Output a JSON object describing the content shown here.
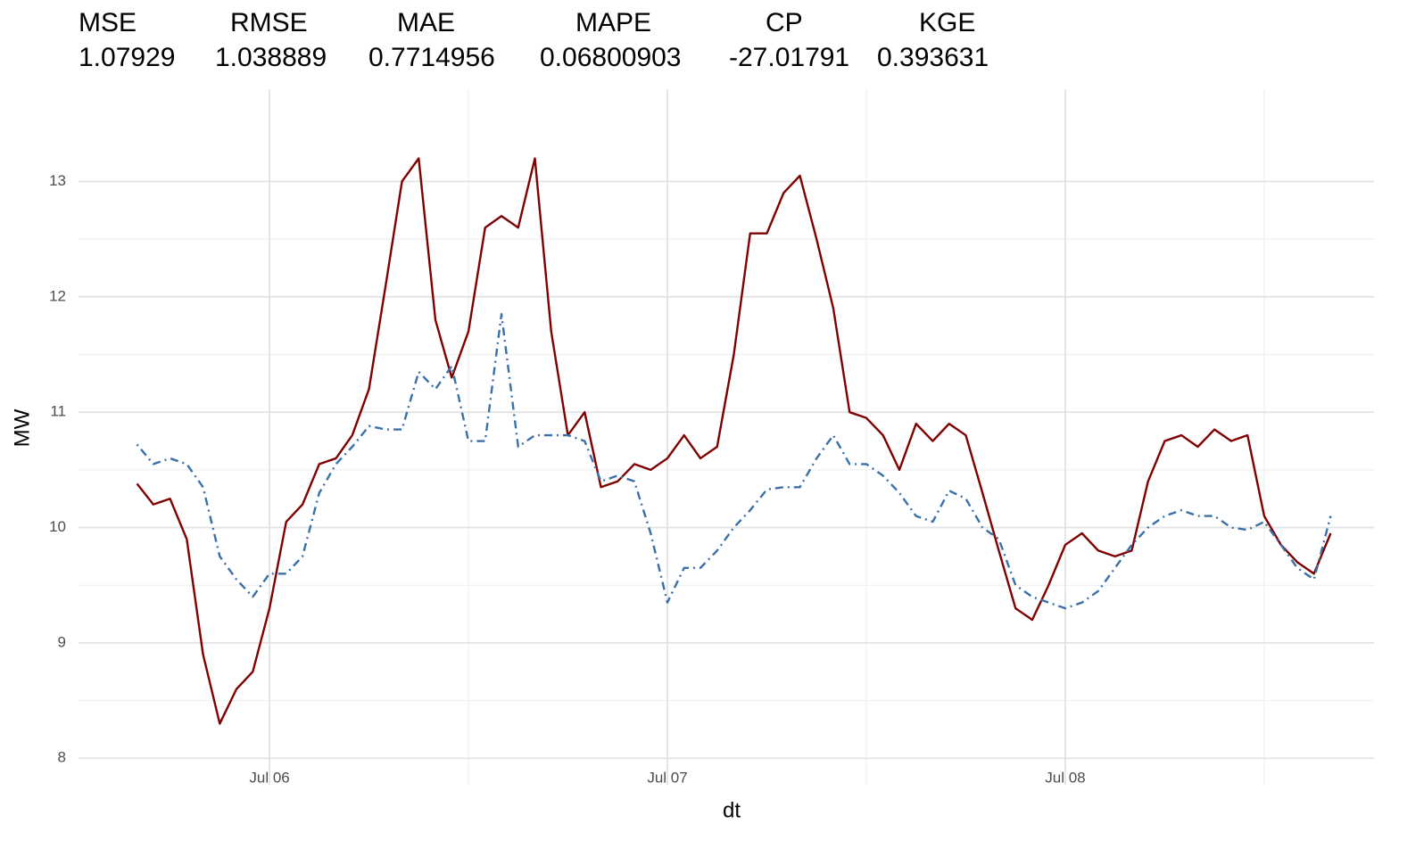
{
  "chart_data": {
    "type": "line",
    "metrics": {
      "names": [
        "MSE",
        "RMSE",
        "MAE",
        "MAPE",
        "CP",
        "KGE"
      ],
      "values": [
        "1.07929",
        "1.038889",
        "0.7714956",
        "0.06800903",
        "-27.01791",
        "0.393631"
      ]
    },
    "x_label": "dt",
    "y_label": "MW",
    "x": [
      -0.333,
      -0.292,
      -0.25,
      -0.208,
      -0.167,
      -0.125,
      -0.083,
      -0.042,
      0,
      0.042,
      0.083,
      0.125,
      0.167,
      0.208,
      0.25,
      0.292,
      0.333,
      0.375,
      0.417,
      0.458,
      0.5,
      0.542,
      0.583,
      0.625,
      0.667,
      0.708,
      0.75,
      0.792,
      0.833,
      0.875,
      0.917,
      0.958,
      1,
      1.042,
      1.083,
      1.125,
      1.167,
      1.208,
      1.25,
      1.292,
      1.333,
      1.375,
      1.417,
      1.458,
      1.5,
      1.542,
      1.583,
      1.625,
      1.667,
      1.708,
      1.75,
      1.792,
      1.833,
      1.875,
      1.917,
      1.958,
      2,
      2.042,
      2.083,
      2.125,
      2.167,
      2.208,
      2.25,
      2.292,
      2.333,
      2.375,
      2.417,
      2.458,
      2.5,
      2.542,
      2.583,
      2.625,
      2.667
    ],
    "series": [
      {
        "color": "#7f0000",
        "dash": "solid",
        "values": [
          10.38,
          10.2,
          10.25,
          9.9,
          8.9,
          8.3,
          8.6,
          8.75,
          9.3,
          10.05,
          10.2,
          10.55,
          10.6,
          10.8,
          11.2,
          12.1,
          13.0,
          13.2,
          11.8,
          11.3,
          11.7,
          12.6,
          12.7,
          12.6,
          13.2,
          11.7,
          10.8,
          11.0,
          10.35,
          10.4,
          10.55,
          10.5,
          10.6,
          10.8,
          10.6,
          10.7,
          11.5,
          12.55,
          12.55,
          12.9,
          13.05,
          12.5,
          11.9,
          11.0,
          10.95,
          10.8,
          10.5,
          10.9,
          10.75,
          10.9,
          10.8,
          10.3,
          9.8,
          9.3,
          9.2,
          9.5,
          9.85,
          9.95,
          9.8,
          9.75,
          9.8,
          10.4,
          10.75,
          10.8,
          10.7,
          10.85,
          10.75,
          10.8,
          10.1,
          9.85,
          9.7,
          9.6,
          9.95
        ]
      },
      {
        "color": "#3a70a8",
        "dash": "dotdash",
        "values": [
          10.72,
          10.55,
          10.6,
          10.55,
          10.35,
          9.75,
          9.55,
          9.4,
          9.6,
          9.6,
          9.75,
          10.3,
          10.55,
          10.7,
          10.88,
          10.85,
          10.85,
          11.35,
          11.2,
          11.4,
          10.75,
          10.75,
          11.85,
          10.7,
          10.8,
          10.8,
          10.8,
          10.75,
          10.4,
          10.45,
          10.4,
          9.95,
          9.35,
          9.65,
          9.65,
          9.8,
          10.0,
          10.15,
          10.33,
          10.35,
          10.35,
          10.6,
          10.8,
          10.55,
          10.55,
          10.45,
          10.3,
          10.1,
          10.05,
          10.32,
          10.25,
          10.0,
          9.9,
          9.5,
          9.4,
          9.35,
          9.3,
          9.35,
          9.45,
          9.65,
          9.85,
          10.0,
          10.1,
          10.15,
          10.1,
          10.1,
          10.0,
          9.98,
          10.05,
          9.85,
          9.65,
          9.55,
          10.1
        ]
      }
    ],
    "xlim": [
      -0.48,
      2.776
    ],
    "xticks": [
      {
        "value": 0,
        "label": "Jul 06"
      },
      {
        "value": 1,
        "label": "Jul 07"
      },
      {
        "value": 2,
        "label": "Jul 08"
      }
    ],
    "ylim": [
      7.77,
      13.8
    ],
    "yticks": [
      8,
      9,
      10,
      11,
      12,
      13
    ],
    "grid": true
  }
}
